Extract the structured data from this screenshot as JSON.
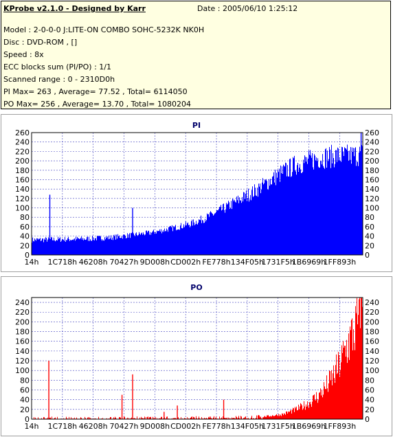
{
  "info": {
    "title": "KProbe v2.1.0 - Designed by Karr",
    "date": "Date : 2005/06/10 1:25:12",
    "lines": [
      "Model : 2-0-0-0 J:LITE-ON COMBO SOHC-5232K NK0H",
      "Disc : DVD-ROM ,  []",
      "Speed : 8x",
      "ECC blocks sum (PI/PO) : 1/1",
      "Scanned range : 0 - 2310D0h",
      "PI Max= 263 , Average= 77.52 , Total= 6114050",
      "PO Max= 256 , Average= 13.70 , Total= 1080204"
    ]
  },
  "chart_data": [
    {
      "type": "area",
      "title": "PI",
      "x_tick_labels": [
        "14h",
        "1C718h",
        "46208h",
        "70427h",
        "9D008h",
        "CD002h",
        "FE778h",
        "134F05h",
        "1731F5h",
        "1B6969h",
        "1FF893h"
      ],
      "y_ticks": [
        0,
        20,
        40,
        60,
        80,
        100,
        120,
        140,
        160,
        180,
        200,
        220,
        240,
        260
      ],
      "ylim": [
        0,
        260
      ],
      "grid": true,
      "color": "#0000ff",
      "profile": [
        [
          0,
          32
        ],
        [
          0.08,
          33
        ],
        [
          0.16,
          34
        ],
        [
          0.24,
          37
        ],
        [
          0.3,
          42
        ],
        [
          0.36,
          47
        ],
        [
          0.42,
          56
        ],
        [
          0.48,
          66
        ],
        [
          0.53,
          80
        ],
        [
          0.58,
          98
        ],
        [
          0.63,
          118
        ],
        [
          0.68,
          138
        ],
        [
          0.72,
          158
        ],
        [
          0.76,
          176
        ],
        [
          0.8,
          192
        ],
        [
          0.84,
          200
        ],
        [
          0.87,
          207
        ],
        [
          0.92,
          210
        ],
        [
          0.97,
          211
        ],
        [
          1.0,
          215
        ]
      ],
      "spikes": [
        [
          0.055,
          128
        ],
        [
          0.305,
          100
        ],
        [
          0.995,
          263
        ]
      ]
    },
    {
      "type": "area",
      "title": "PO",
      "x_tick_labels": [
        "14h",
        "1C718h",
        "46208h",
        "70427h",
        "9D008h",
        "CD002h",
        "FE778h",
        "134F05h",
        "1731F5h",
        "1B6969h",
        "1FF893h"
      ],
      "y_ticks": [
        0,
        20,
        40,
        60,
        80,
        100,
        120,
        140,
        160,
        180,
        200,
        220,
        240
      ],
      "ylim": [
        0,
        250
      ],
      "grid": true,
      "color": "#ff0000",
      "profile": [
        [
          0,
          1
        ],
        [
          0.5,
          2
        ],
        [
          0.62,
          3
        ],
        [
          0.7,
          5
        ],
        [
          0.76,
          10
        ],
        [
          0.8,
          20
        ],
        [
          0.84,
          34
        ],
        [
          0.87,
          50
        ],
        [
          0.9,
          75
        ],
        [
          0.93,
          110
        ],
        [
          0.96,
          160
        ],
        [
          0.985,
          195
        ],
        [
          1.0,
          205
        ]
      ],
      "spikes": [
        [
          0.052,
          120
        ],
        [
          0.273,
          50
        ],
        [
          0.305,
          92
        ],
        [
          0.4,
          15
        ],
        [
          0.44,
          28
        ],
        [
          0.58,
          40
        ],
        [
          0.995,
          256
        ]
      ]
    }
  ]
}
